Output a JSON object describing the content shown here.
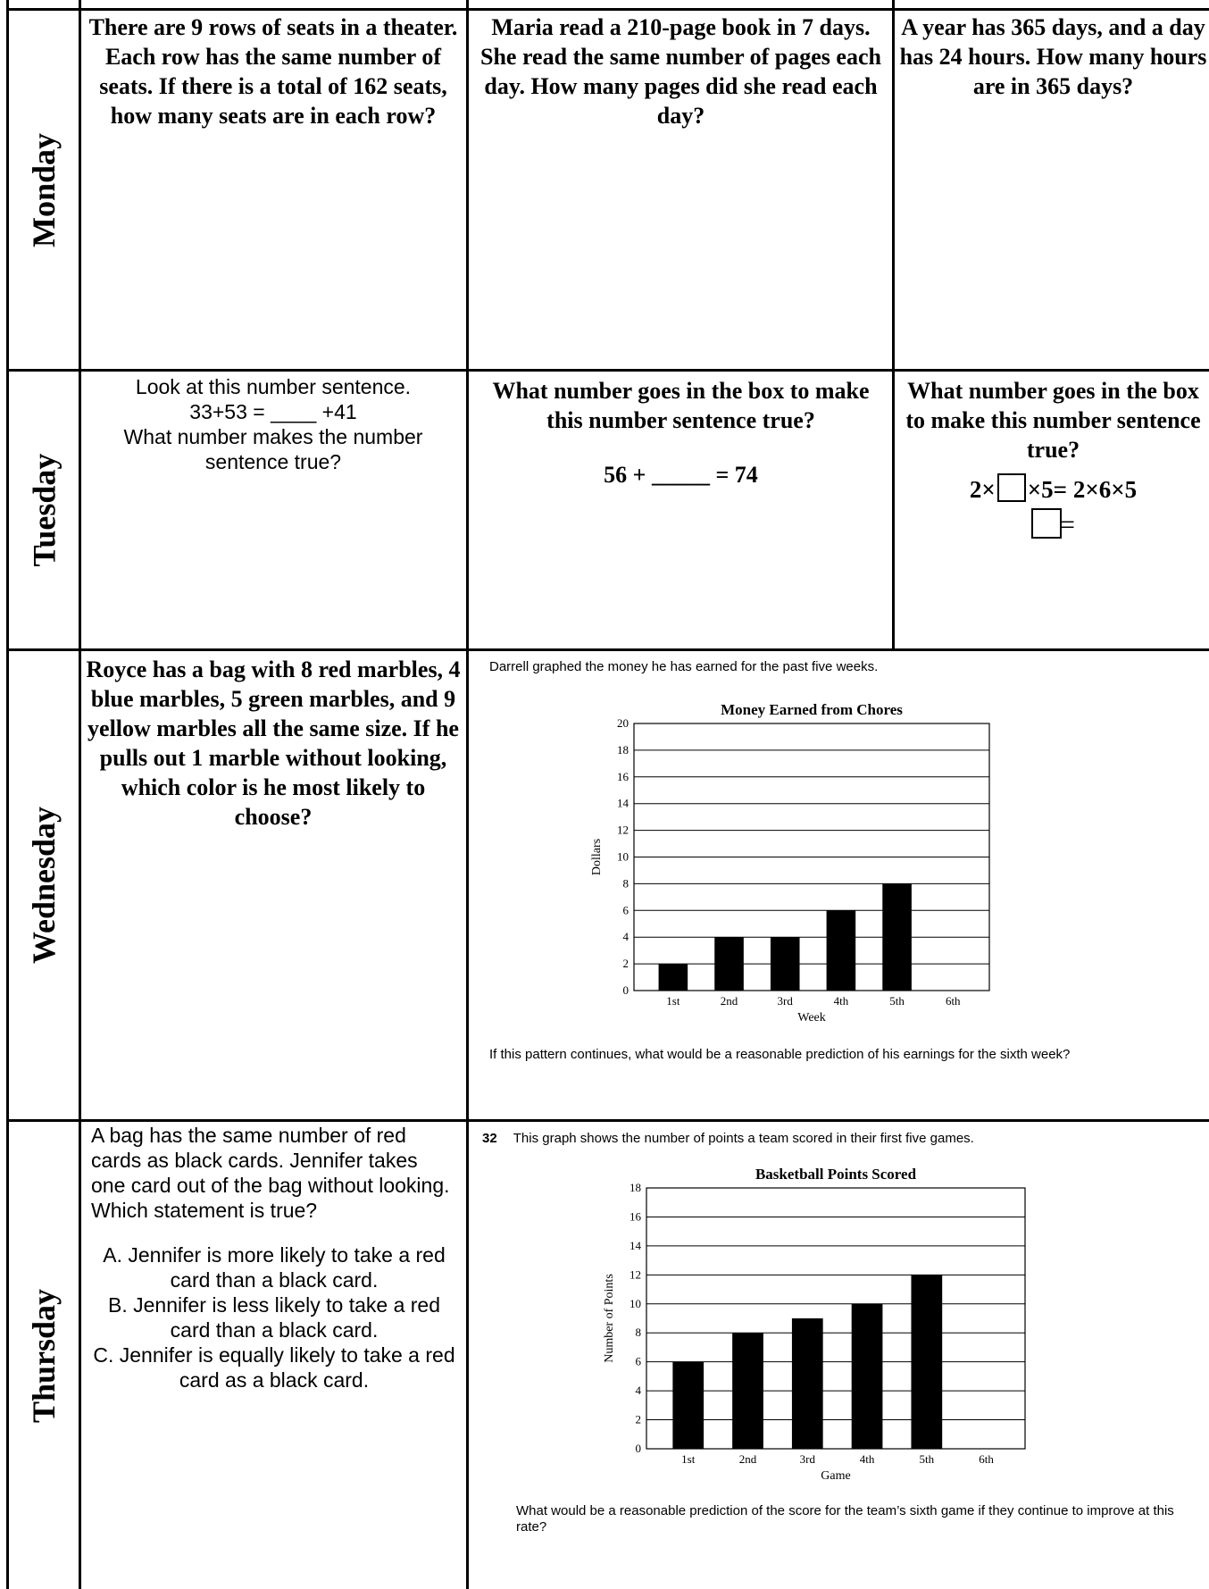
{
  "days": [
    "Monday",
    "Tuesday",
    "Wednesday",
    "Thursday"
  ],
  "monday": {
    "q1": "There are 9 rows of seats in a theater. Each row has the same number of seats. If there is a total of 162 seats, how many seats are in each row?",
    "q2": "Maria read a 210-page book in 7 days. She read the same number of pages each day. How many pages did she read each day?",
    "q3": "A year has 365 days, and a day has 24 hours. How many hours are in 365 days?"
  },
  "tuesday": {
    "q1_line1": "Look at this number sentence.",
    "q1_eq": "33+53 = ____ +41",
    "q1_line2": "What number makes the number sentence true?",
    "q2_text": "What number goes in the box to make this number sentence true?",
    "q2_eq": "56 + _____ = 74",
    "q3_text": "What number goes in the box to make this number sentence true?",
    "q3_eq_a": "2×",
    "q3_eq_b": "×5= 2×6×5",
    "q3_eq_c": "="
  },
  "wednesday": {
    "q1": "Royce has a bag with 8 red marbles, 4 blue marbles, 5 green marbles, and 9 yellow marbles all the same size. If he pulls out 1 marble without looking, which color is he most likely to choose?",
    "q2_intro": "Darrell graphed the money he has earned for the past five weeks.",
    "q2_question": "If this pattern continues, what would be a reasonable prediction of his earnings for the sixth week?"
  },
  "thursday": {
    "q1_text": "A bag has the same number of red cards as black cards. Jennifer takes one card out of the bag without looking. Which statement is true?",
    "q1_choices": [
      "A. Jennifer is more likely to take a red card than a black card.",
      "B. Jennifer is less likely to take a red card than a black card.",
      "C. Jennifer is equally likely to take a red card as a black card."
    ],
    "q2_number": "32",
    "q2_intro": "This graph shows the number of points a team scored in their first five games.",
    "q2_question": "What would be a reasonable prediction of the score for the team’s sixth game if they continue to improve at this rate?"
  },
  "chart_data": [
    {
      "type": "bar",
      "title": "Money Earned from Chores",
      "xlabel": "Week",
      "ylabel": "Dollars",
      "categories": [
        "1st",
        "2nd",
        "3rd",
        "4th",
        "5th",
        "6th"
      ],
      "values": [
        2,
        4,
        4,
        6,
        8,
        null
      ],
      "ylim": [
        0,
        20
      ],
      "yticks": [
        0,
        2,
        4,
        6,
        8,
        10,
        12,
        14,
        16,
        18,
        20
      ],
      "grid": true,
      "bar_color": "#000000"
    },
    {
      "type": "bar",
      "title": "Basketball Points Scored",
      "xlabel": "Game",
      "ylabel": "Number of Points",
      "categories": [
        "1st",
        "2nd",
        "3rd",
        "4th",
        "5th",
        "6th"
      ],
      "values": [
        6,
        8,
        9,
        10,
        12,
        null
      ],
      "ylim": [
        0,
        18
      ],
      "yticks": [
        0,
        2,
        4,
        6,
        8,
        10,
        12,
        14,
        16,
        18
      ],
      "grid": true,
      "bar_color": "#000000"
    }
  ]
}
